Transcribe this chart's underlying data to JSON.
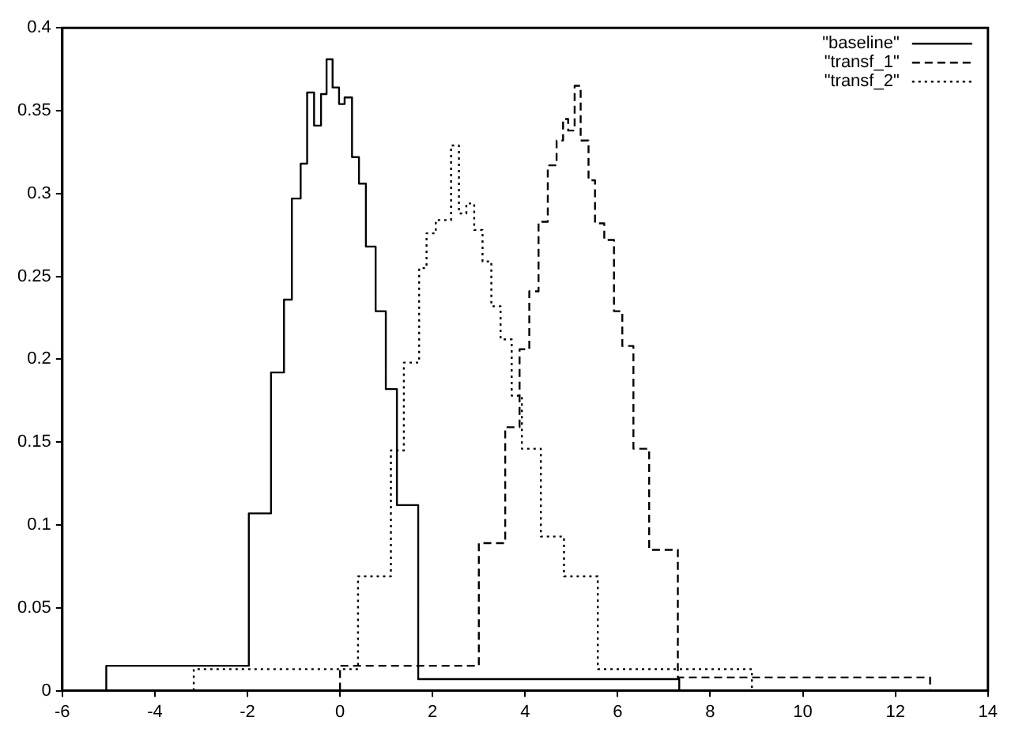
{
  "chart_data": {
    "type": "step",
    "xlim": [
      -6,
      14
    ],
    "xticks": [
      -6,
      -4,
      -2,
      0,
      2,
      4,
      6,
      8,
      10,
      12,
      14
    ],
    "ylim": [
      0,
      0.4
    ],
    "yticks": [
      0,
      0.05,
      0.1,
      0.15,
      0.2,
      0.25,
      0.3,
      0.35,
      0.4
    ],
    "legend": "top right",
    "series": [
      {
        "name": "\"baseline\"",
        "color": "#000000",
        "line_style": "solid",
        "x": [
          -5.05,
          -5.05,
          -1.97,
          -1.49,
          -1.21,
          -1.04,
          -0.85,
          -0.71,
          -0.56,
          -0.41,
          -0.29,
          -0.16,
          -0.02,
          0.1,
          0.26,
          0.41,
          0.56,
          0.77,
          0.99,
          1.23,
          1.69,
          7.33
        ],
        "values": [
          0,
          0.015,
          0.107,
          0.192,
          0.236,
          0.297,
          0.318,
          0.361,
          0.341,
          0.36,
          0.381,
          0.364,
          0.354,
          0.358,
          0.322,
          0.306,
          0.268,
          0.229,
          0.182,
          0.112,
          0.007,
          0
        ]
      },
      {
        "name": "\"transf_1\"",
        "color": "#000000",
        "line_style": "dashed",
        "x": [
          0.0,
          0.0,
          3.0,
          3.57,
          3.88,
          4.09,
          4.29,
          4.49,
          4.68,
          4.82,
          4.93,
          5.07,
          5.2,
          5.37,
          5.51,
          5.71,
          5.92,
          6.1,
          6.34,
          6.68,
          7.3,
          12.75
        ],
        "values": [
          0,
          0.015,
          0.089,
          0.159,
          0.206,
          0.241,
          0.283,
          0.317,
          0.332,
          0.345,
          0.338,
          0.365,
          0.332,
          0.308,
          0.282,
          0.272,
          0.229,
          0.208,
          0.146,
          0.085,
          0.008,
          0
        ]
      },
      {
        "name": "\"transf_2\"",
        "color": "#000000",
        "line_style": "dotted",
        "x": [
          -3.16,
          -3.16,
          0.39,
          1.1,
          1.38,
          1.71,
          1.87,
          2.07,
          2.4,
          2.57,
          2.73,
          2.9,
          3.08,
          3.27,
          3.47,
          3.71,
          3.93,
          4.34,
          4.84,
          5.57,
          8.9
        ],
        "values": [
          0,
          0.013,
          0.069,
          0.145,
          0.198,
          0.255,
          0.276,
          0.284,
          0.329,
          0.288,
          0.294,
          0.278,
          0.259,
          0.232,
          0.212,
          0.178,
          0.146,
          0.093,
          0.069,
          0.013,
          0
        ]
      }
    ]
  }
}
